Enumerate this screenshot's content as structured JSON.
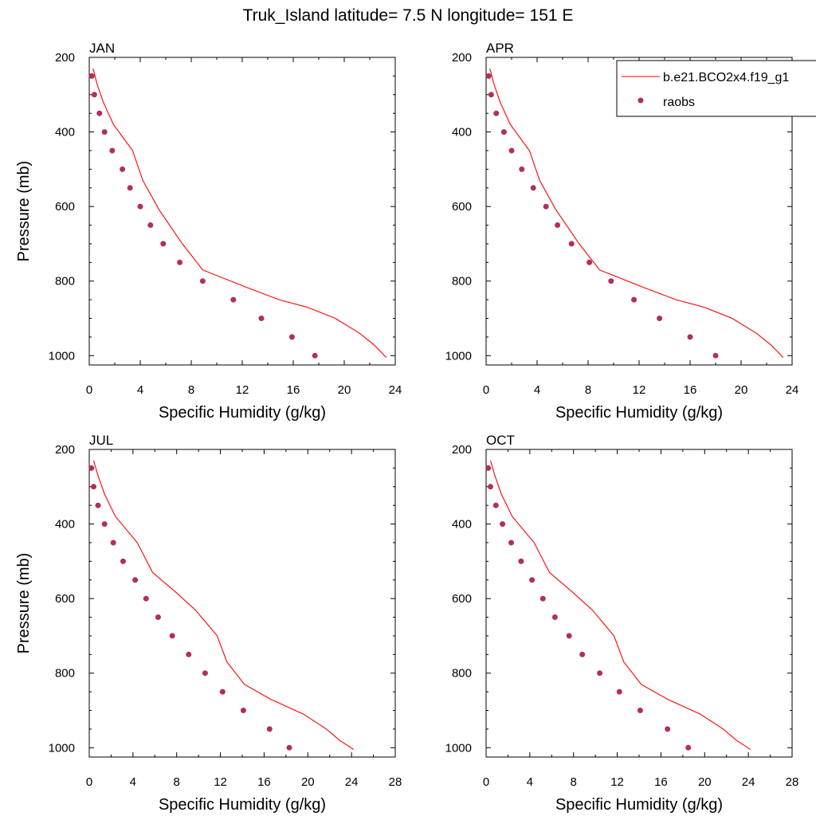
{
  "title": "Truk_Island  latitude= 7.5 N longitude= 151 E",
  "legend": {
    "model_label": "b.e21.BCO2x4.f19_g1",
    "obs_label": "raobs",
    "colors": {
      "model": "#ff0000",
      "obs": "#b0305a"
    }
  },
  "chart_data": [
    {
      "type": "line",
      "panel": "JAN",
      "xlabel": "Specific Humidity (g/kg)",
      "ylabel": "Pressure (mb)",
      "xlim": [
        0,
        24
      ],
      "ylim": [
        200,
        1025
      ],
      "y_inverted": true,
      "xticks": [
        0,
        4,
        8,
        12,
        16,
        20,
        24
      ],
      "yticks": [
        200,
        400,
        600,
        800,
        1000
      ],
      "series": [
        {
          "name": "b.e21.BCO2x4.f19_g1",
          "style": "line",
          "x": [
            0.3,
            0.6,
            1.1,
            1.9,
            3.4,
            4.2,
            5.5,
            7.3,
            8.9,
            12.2,
            14.9,
            17.1,
            19.3,
            21.2,
            22.3,
            23.3
          ],
          "y": [
            230,
            270,
            320,
            380,
            450,
            530,
            610,
            700,
            770,
            815,
            850,
            870,
            900,
            940,
            970,
            1005
          ]
        },
        {
          "name": "raobs",
          "style": "markers",
          "x": [
            0.2,
            0.4,
            0.8,
            1.2,
            1.8,
            2.6,
            3.2,
            4.0,
            4.8,
            5.8,
            7.1,
            8.9,
            11.3,
            13.5,
            15.9,
            17.7
          ],
          "y": [
            250,
            300,
            350,
            400,
            450,
            500,
            550,
            600,
            650,
            700,
            750,
            800,
            850,
            900,
            950,
            1000
          ]
        }
      ]
    },
    {
      "type": "line",
      "panel": "APR",
      "xlabel": "Specific Humidity (g/kg)",
      "ylabel": "",
      "xlim": [
        0,
        24
      ],
      "ylim": [
        200,
        1025
      ],
      "y_inverted": true,
      "xticks": [
        0,
        4,
        8,
        12,
        16,
        20,
        24
      ],
      "yticks": [
        200,
        400,
        600,
        800,
        1000
      ],
      "series": [
        {
          "name": "b.e21.BCO2x4.f19_g1",
          "style": "line",
          "x": [
            0.3,
            0.6,
            1.1,
            1.9,
            3.4,
            4.2,
            5.5,
            7.3,
            8.9,
            12.2,
            14.9,
            17.1,
            19.3,
            21.2,
            22.3,
            23.3
          ],
          "y": [
            230,
            270,
            320,
            380,
            450,
            530,
            610,
            700,
            770,
            815,
            850,
            870,
            900,
            940,
            970,
            1005
          ]
        },
        {
          "name": "raobs",
          "style": "markers",
          "x": [
            0.2,
            0.4,
            0.8,
            1.4,
            2.0,
            2.8,
            3.7,
            4.7,
            5.6,
            6.7,
            8.1,
            9.8,
            11.6,
            13.6,
            16.0,
            18.0
          ],
          "y": [
            250,
            300,
            350,
            400,
            450,
            500,
            550,
            600,
            650,
            700,
            750,
            800,
            850,
            900,
            950,
            1000
          ]
        }
      ]
    },
    {
      "type": "line",
      "panel": "JUL",
      "xlabel": "Specific Humidity (g/kg)",
      "ylabel": "Pressure (mb)",
      "xlim": [
        0,
        28
      ],
      "ylim": [
        200,
        1025
      ],
      "y_inverted": true,
      "xticks": [
        0,
        4,
        8,
        12,
        16,
        20,
        24,
        28
      ],
      "yticks": [
        200,
        400,
        600,
        800,
        1000
      ],
      "series": [
        {
          "name": "b.e21.BCO2x4.f19_g1",
          "style": "line",
          "x": [
            0.4,
            0.8,
            1.4,
            2.4,
            4.4,
            5.8,
            7.8,
            9.7,
            11.7,
            12.6,
            14.2,
            16.6,
            19.6,
            21.7,
            22.9,
            24.2
          ],
          "y": [
            230,
            270,
            320,
            380,
            450,
            530,
            580,
            630,
            700,
            770,
            830,
            870,
            910,
            950,
            980,
            1005
          ]
        },
        {
          "name": "raobs",
          "style": "markers",
          "x": [
            0.2,
            0.4,
            0.8,
            1.4,
            2.2,
            3.1,
            4.2,
            5.2,
            6.3,
            7.6,
            9.1,
            10.6,
            12.2,
            14.1,
            16.5,
            18.3
          ],
          "y": [
            250,
            300,
            350,
            400,
            450,
            500,
            550,
            600,
            650,
            700,
            750,
            800,
            850,
            900,
            950,
            1000
          ]
        }
      ]
    },
    {
      "type": "line",
      "panel": "OCT",
      "xlabel": "Specific Humidity (g/kg)",
      "ylabel": "",
      "xlim": [
        0,
        28
      ],
      "ylim": [
        200,
        1025
      ],
      "y_inverted": true,
      "xticks": [
        0,
        4,
        8,
        12,
        16,
        20,
        24,
        28
      ],
      "yticks": [
        200,
        400,
        600,
        800,
        1000
      ],
      "series": [
        {
          "name": "b.e21.BCO2x4.f19_g1",
          "style": "line",
          "x": [
            0.4,
            0.8,
            1.4,
            2.4,
            4.4,
            5.8,
            7.8,
            9.7,
            11.7,
            12.6,
            14.2,
            16.6,
            19.6,
            21.7,
            22.9,
            24.2
          ],
          "y": [
            230,
            270,
            320,
            380,
            450,
            530,
            580,
            630,
            700,
            770,
            830,
            870,
            910,
            950,
            980,
            1005
          ]
        },
        {
          "name": "raobs",
          "style": "markers",
          "x": [
            0.2,
            0.4,
            0.9,
            1.5,
            2.3,
            3.2,
            4.2,
            5.2,
            6.3,
            7.6,
            8.8,
            10.4,
            12.2,
            14.1,
            16.6,
            18.5
          ],
          "y": [
            250,
            300,
            350,
            400,
            450,
            500,
            550,
            600,
            650,
            700,
            750,
            800,
            850,
            900,
            950,
            1000
          ]
        }
      ]
    }
  ]
}
